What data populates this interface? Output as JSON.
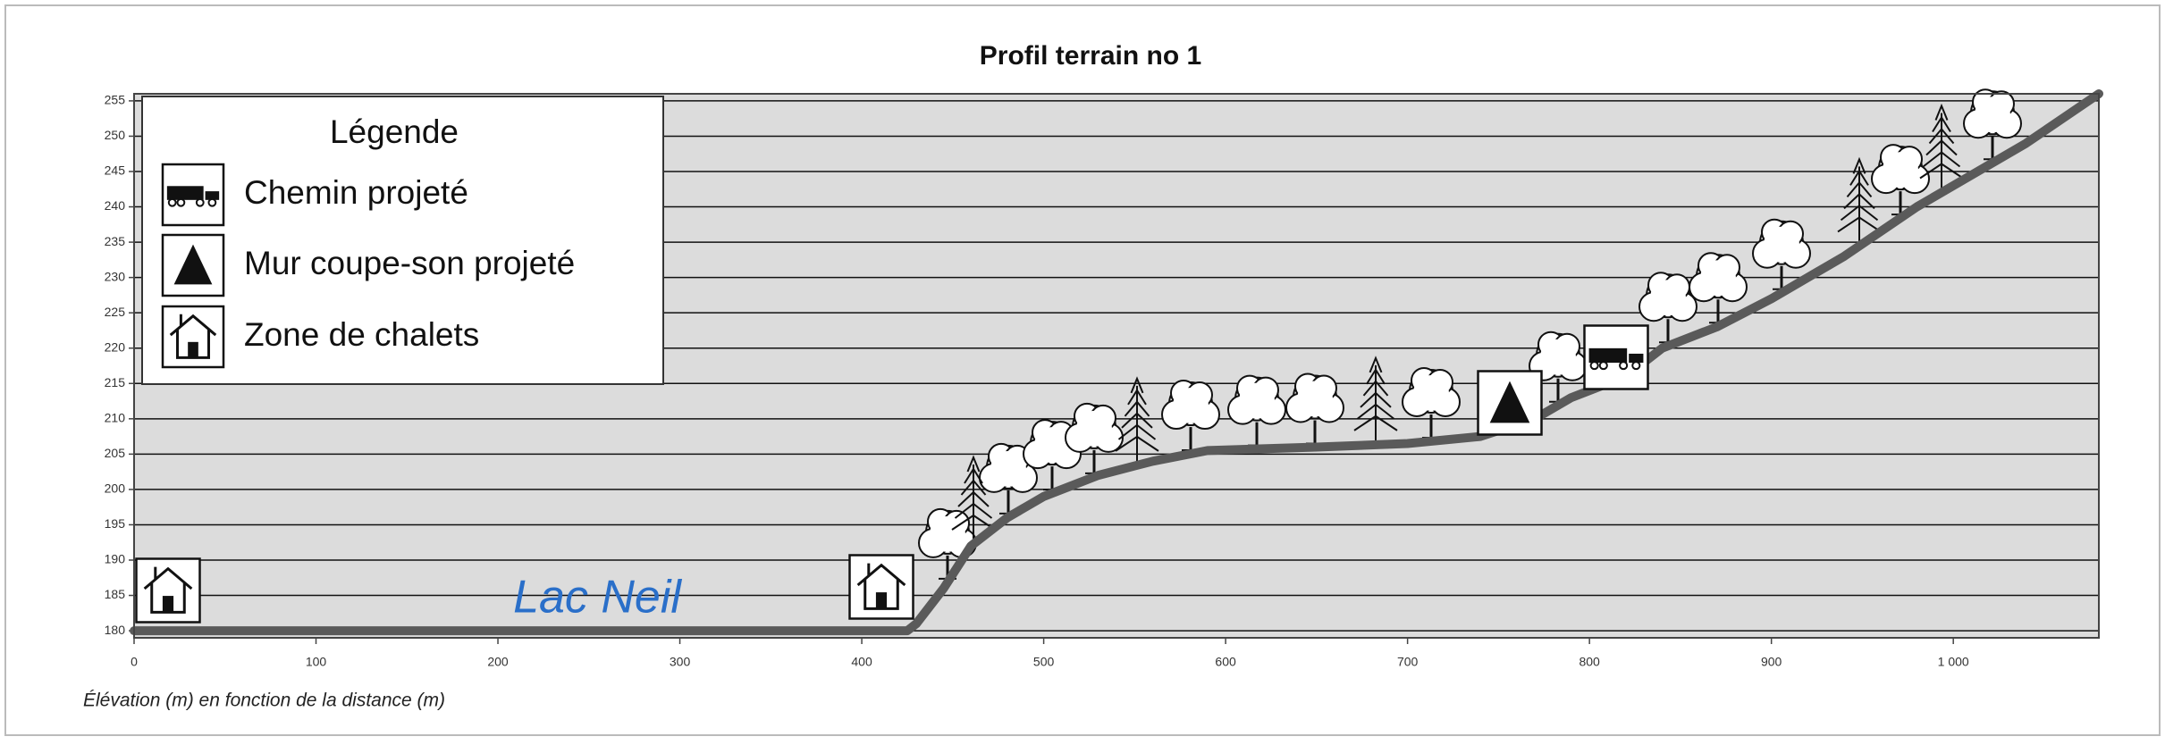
{
  "chart_data": {
    "type": "line",
    "title": "Profil terrain no 1",
    "x_label": "Élévation (m) en fonction de la distance (m)",
    "annotation": "Lac Neil",
    "legend": {
      "title": "Légende",
      "items": [
        "Chemin projeté",
        "Mur coupe-son projeté",
        "Zone de chalets"
      ]
    },
    "x": [
      0,
      425,
      430,
      445,
      460,
      480,
      500,
      530,
      560,
      590,
      650,
      700,
      740,
      770,
      790,
      820,
      840,
      870,
      900,
      940,
      980,
      1000,
      1040,
      1080
    ],
    "series": [
      {
        "color": "#5a5a5a",
        "values": [
          180,
          180,
          181,
          186,
          192,
          196,
          199,
          202,
          204,
          205.5,
          206,
          206.5,
          207.5,
          210,
          213,
          216,
          220,
          223,
          227,
          233,
          240,
          243,
          249,
          256
        ]
      }
    ],
    "xlim": [
      0,
      1080
    ],
    "xticks": [
      0,
      100,
      200,
      300,
      400,
      500,
      600,
      700,
      800,
      900,
      {
        "value": 1000,
        "label": "1 000"
      }
    ],
    "ylim": [
      179,
      256
    ],
    "yticks": [
      180,
      185,
      190,
      195,
      200,
      205,
      210,
      215,
      220,
      225,
      230,
      235,
      240,
      245,
      250,
      255
    ],
    "grid": true
  }
}
